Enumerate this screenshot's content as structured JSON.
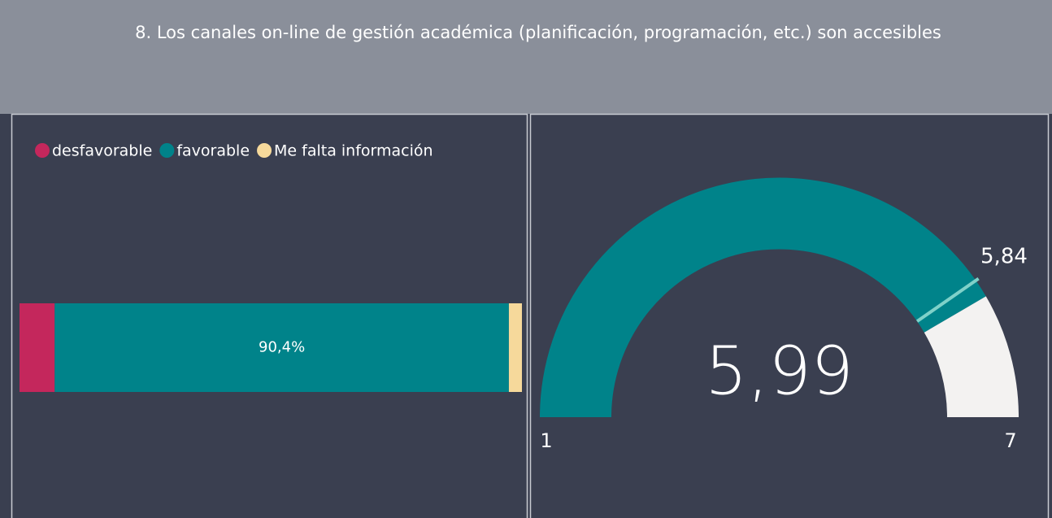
{
  "header": {
    "title": "8. Los canales on-line de gestión académica (planificación, programación, etc.) son accesibles"
  },
  "chart_data": [
    {
      "type": "bar",
      "orientation": "horizontal",
      "stacked": true,
      "legend": "top-left",
      "xlim": [
        0,
        100
      ],
      "series": [
        {
          "name": "desfavorable",
          "color": "#c4275c",
          "values": [
            7.0
          ]
        },
        {
          "name": "favorable",
          "color": "#00838a",
          "values": [
            90.4
          ],
          "value_labels": [
            "90,4%"
          ]
        },
        {
          "name": "Me falta información",
          "color": "#f6d99b",
          "values": [
            2.6
          ]
        }
      ]
    },
    {
      "type": "gauge",
      "min": 1,
      "max": 7,
      "value": 5.99,
      "value_label": "5,99",
      "target": 5.84,
      "target_label": "5,84",
      "color": "#00838a",
      "rest_color": "#f3f2f1",
      "target_color": "#7fd1c9"
    }
  ]
}
